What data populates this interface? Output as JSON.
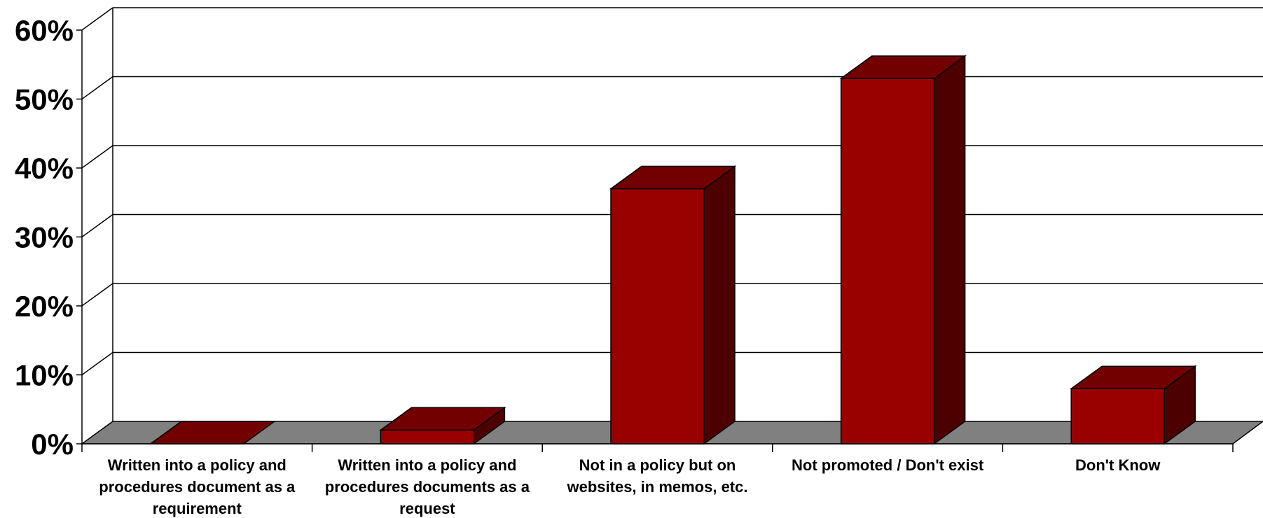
{
  "chart_data": {
    "type": "bar",
    "title": "",
    "xlabel": "",
    "ylabel": "",
    "categories": [
      [
        "Written into a policy and",
        "procedures document as a",
        "requirement"
      ],
      [
        "Written into a policy and",
        "procedures documents as a",
        "request"
      ],
      [
        "Not in a policy but on",
        "websites, in memos, etc."
      ],
      [
        "Not promoted / Don't exist"
      ],
      [
        "Don't Know"
      ]
    ],
    "values": [
      0,
      2,
      37,
      53,
      8
    ],
    "ylim": [
      0,
      60
    ],
    "yticks": [
      0,
      10,
      20,
      30,
      40,
      50,
      60
    ],
    "ytick_labels": [
      "0%",
      "10%",
      "20%",
      "30%",
      "40%",
      "50%",
      "60%"
    ],
    "grid": true,
    "legend": "none",
    "style": "3d-column",
    "colors": {
      "bar_front": "#990000",
      "bar_top": "#720000",
      "bar_side": "#4d0000",
      "floor": "#808080",
      "grid": "#000000"
    }
  }
}
